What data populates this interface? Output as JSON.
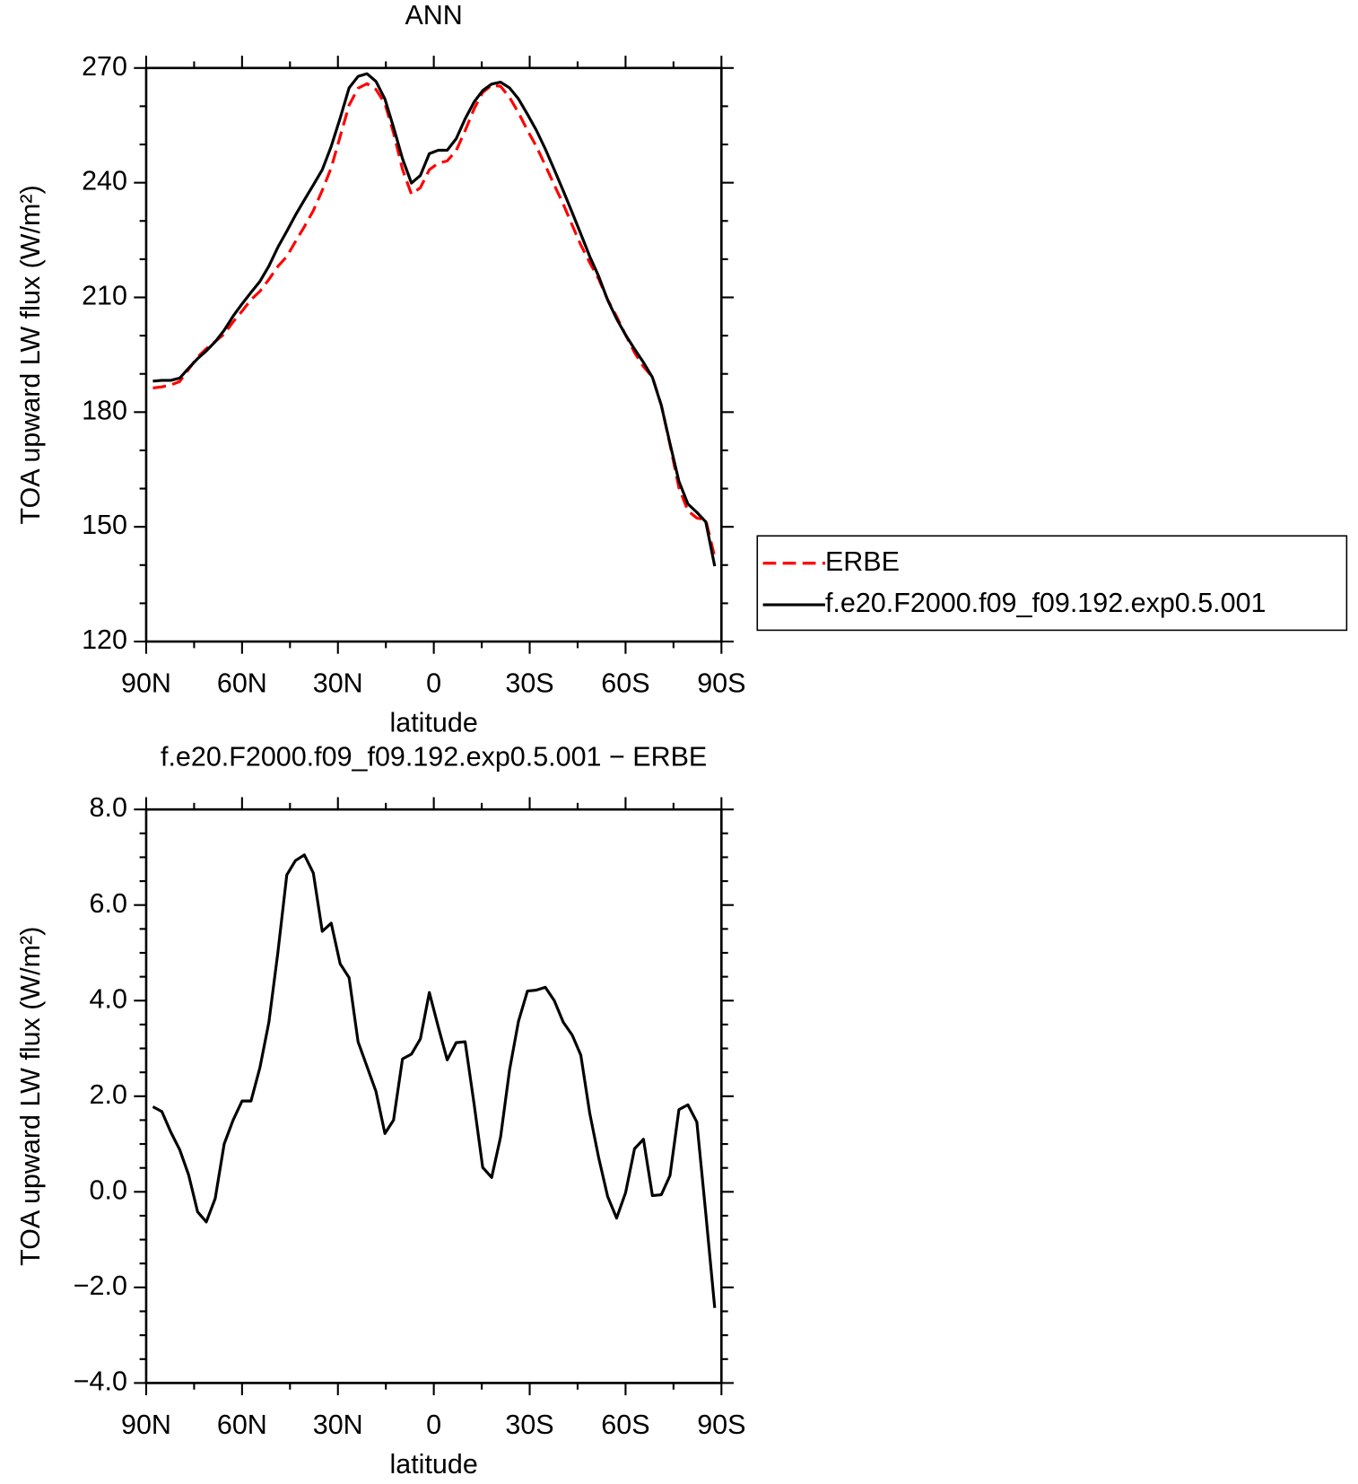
{
  "chart_data": [
    {
      "type": "line",
      "title": "ANN",
      "xlabel": "latitude",
      "ylabel": "TOA upward LW flux (W/m²)",
      "x": [
        87.9,
        85.1,
        82.3,
        79.5,
        76.7,
        73.9,
        71.2,
        68.4,
        65.6,
        62.8,
        60.0,
        57.2,
        54.4,
        51.6,
        48.8,
        46.0,
        43.3,
        40.5,
        37.7,
        34.9,
        32.1,
        29.3,
        26.5,
        23.7,
        20.9,
        18.1,
        15.3,
        12.6,
        9.8,
        7.0,
        4.2,
        1.4,
        -1.4,
        -4.2,
        -7.0,
        -9.8,
        -12.6,
        -15.3,
        -18.1,
        -20.9,
        -23.7,
        -26.5,
        -29.3,
        -32.1,
        -34.9,
        -37.7,
        -40.5,
        -43.3,
        -46.0,
        -48.8,
        -51.6,
        -54.4,
        -57.2,
        -60.0,
        -62.8,
        -65.6,
        -68.4,
        -71.2,
        -73.9,
        -76.7,
        -79.5,
        -82.3,
        -85.1,
        -87.9
      ],
      "series": [
        {
          "name": "ERBE",
          "color": "#ff0000",
          "dash": "dashed",
          "values": [
            186.3,
            186.6,
            187.1,
            188.0,
            191.2,
            194.4,
            196.6,
            198.5,
            200.4,
            203.6,
            206.4,
            209.4,
            211.6,
            214.7,
            218.1,
            220.7,
            224.6,
            228.5,
            232.7,
            238.0,
            243.9,
            252.1,
            260.3,
            264.7,
            265.9,
            264.4,
            260.7,
            253.0,
            243.5,
            237.0,
            238.7,
            243.4,
            245.1,
            245.7,
            248.4,
            253.6,
            259.3,
            263.6,
            265.5,
            265.2,
            262.3,
            258.3,
            253.7,
            249.5,
            244.5,
            239.4,
            234.4,
            228.9,
            223.7,
            219.1,
            214.8,
            209.4,
            205.0,
            200.2,
            195.6,
            191.9,
            189.2,
            181.8,
            171.5,
            160.2,
            154.2,
            152.3,
            151.8,
            142.1
          ]
        },
        {
          "name": "f.e20.F2000.f09_f09.192.exp0.5.001",
          "color": "#000000",
          "values": [
            188.1,
            188.3,
            188.3,
            188.9,
            191.5,
            194.0,
            196.0,
            198.4,
            201.4,
            205.1,
            208.3,
            211.3,
            214.2,
            218.2,
            223.1,
            227.3,
            231.5,
            235.5,
            239.4,
            243.4,
            249.5,
            256.9,
            264.8,
            267.8,
            268.5,
            266.5,
            261.9,
            254.5,
            246.3,
            239.9,
            241.9,
            247.6,
            248.5,
            248.5,
            251.5,
            256.7,
            261.1,
            264.1,
            265.8,
            266.3,
            264.8,
            261.9,
            257.9,
            253.7,
            248.8,
            243.4,
            237.9,
            232.2,
            226.6,
            220.7,
            215.5,
            209.3,
            204.4,
            200.2,
            196.5,
            193.0,
            189.1,
            181.7,
            171.8,
            161.9,
            156.0,
            153.8,
            151.3,
            139.7
          ]
        }
      ],
      "xlim": [
        90,
        -90
      ],
      "xticks": [
        {
          "value": 90,
          "label": "90N"
        },
        {
          "value": 60,
          "label": "60N"
        },
        {
          "value": 30,
          "label": "30N"
        },
        0,
        {
          "value": -30,
          "label": "30S"
        },
        {
          "value": -60,
          "label": "60S"
        },
        {
          "value": -90,
          "label": "90S"
        }
      ],
      "xminorticks": [
        75,
        45,
        15,
        -15,
        -45,
        -75
      ],
      "ylim": [
        120,
        270
      ],
      "yticks": [
        120,
        150,
        180,
        210,
        240,
        270
      ],
      "yminorticks": [
        130,
        140,
        160,
        170,
        190,
        200,
        220,
        230,
        250,
        260
      ],
      "legend": "outside-right"
    },
    {
      "type": "line",
      "title": "f.e20.F2000.f09_f09.192.exp0.5.001 − ERBE",
      "xlabel": "latitude",
      "ylabel": "TOA upward LW flux (W/m²)",
      "x": [
        87.9,
        85.1,
        82.3,
        79.5,
        76.7,
        73.9,
        71.2,
        68.4,
        65.6,
        62.8,
        60.0,
        57.2,
        54.4,
        51.6,
        48.8,
        46.0,
        43.3,
        40.5,
        37.7,
        34.9,
        32.1,
        29.3,
        26.5,
        23.7,
        20.9,
        18.1,
        15.3,
        12.6,
        9.8,
        7.0,
        4.2,
        1.4,
        -1.4,
        -4.2,
        -7.0,
        -9.8,
        -12.6,
        -15.3,
        -18.1,
        -20.9,
        -23.7,
        -26.5,
        -29.3,
        -32.1,
        -34.9,
        -37.7,
        -40.5,
        -43.3,
        -46.0,
        -48.8,
        -51.6,
        -54.4,
        -57.2,
        -60.0,
        -62.8,
        -65.6,
        -68.4,
        -71.2,
        -73.9,
        -76.7,
        -79.5,
        -82.3,
        -85.1,
        -87.9
      ],
      "color": "#000000",
      "values": [
        1.78,
        1.68,
        1.25,
        0.88,
        0.35,
        -0.42,
        -0.63,
        -0.14,
        1.0,
        1.5,
        1.9,
        1.9,
        2.6,
        3.55,
        5.0,
        6.63,
        6.93,
        7.05,
        6.67,
        5.45,
        5.62,
        4.77,
        4.48,
        3.14,
        2.62,
        2.1,
        1.22,
        1.5,
        2.78,
        2.88,
        3.2,
        4.17,
        3.45,
        2.76,
        3.12,
        3.14,
        1.84,
        0.51,
        0.3,
        1.15,
        2.55,
        3.57,
        4.2,
        4.22,
        4.28,
        4.0,
        3.55,
        3.28,
        2.86,
        1.64,
        0.71,
        -0.1,
        -0.55,
        -0.02,
        0.9,
        1.1,
        -0.08,
        -0.06,
        0.34,
        1.72,
        1.82,
        1.46,
        -0.45,
        -2.43
      ],
      "xlim": [
        90,
        -90
      ],
      "xticks": [
        {
          "value": 90,
          "label": "90N"
        },
        {
          "value": 60,
          "label": "60N"
        },
        {
          "value": 30,
          "label": "30N"
        },
        0,
        {
          "value": -30,
          "label": "30S"
        },
        {
          "value": -60,
          "label": "60S"
        },
        {
          "value": -90,
          "label": "90S"
        }
      ],
      "xminorticks": [
        75,
        45,
        15,
        -15,
        -45,
        -75
      ],
      "ylim": [
        -4,
        8
      ],
      "yticks": [
        {
          "value": -4,
          "label": "−4.0"
        },
        {
          "value": -2,
          "label": "−2.0"
        },
        {
          "value": 0,
          "label": "0.0"
        },
        {
          "value": 2,
          "label": "2.0"
        },
        {
          "value": 4,
          "label": "4.0"
        },
        {
          "value": 6,
          "label": "6.0"
        },
        {
          "value": 8,
          "label": "8.0"
        }
      ],
      "yminorticks": [
        -3.5,
        -3,
        -2.5,
        -1.5,
        -1,
        -0.5,
        0.5,
        1,
        1.5,
        2.5,
        3,
        3.5,
        4.5,
        5,
        5.5,
        6.5,
        7,
        7.5
      ]
    }
  ]
}
